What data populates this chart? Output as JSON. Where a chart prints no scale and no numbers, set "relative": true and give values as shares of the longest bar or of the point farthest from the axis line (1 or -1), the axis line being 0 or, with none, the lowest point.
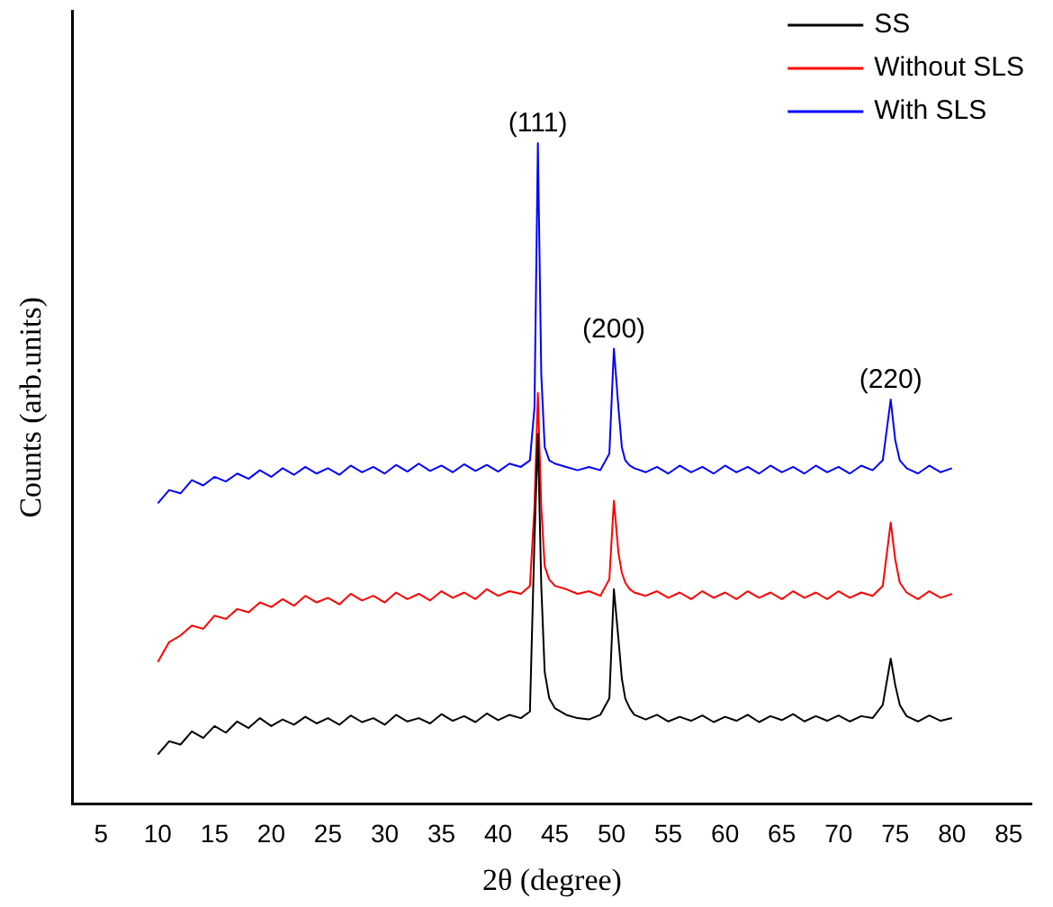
{
  "chart_data": {
    "type": "line",
    "xlabel": "2θ (degree)",
    "ylabel": "Counts (arb.units)",
    "relative": true,
    "xlim": [
      2.5,
      87
    ],
    "xticks": [
      5,
      10,
      15,
      20,
      25,
      30,
      35,
      40,
      45,
      50,
      55,
      60,
      65,
      70,
      75,
      80,
      85
    ],
    "legend": "top right",
    "marker": "none",
    "grid": false,
    "x": [
      10,
      11,
      12,
      13,
      14,
      15,
      16,
      17,
      18,
      19,
      20,
      21,
      22,
      23,
      24,
      25,
      26,
      27,
      28,
      29,
      30,
      31,
      32,
      33,
      34,
      35,
      36,
      37,
      38,
      39,
      40,
      41,
      42,
      42.8,
      43.2,
      43.5,
      43.8,
      44.1,
      44.5,
      45,
      46,
      47,
      48,
      49,
      49.8,
      50.2,
      50.6,
      50.9,
      51.2,
      51.6,
      52,
      53,
      54,
      55,
      56,
      57,
      58,
      59,
      60,
      61,
      62,
      63,
      64,
      65,
      66,
      67,
      68,
      69,
      70,
      71,
      72,
      73,
      73.9,
      74.6,
      75,
      75.4,
      76,
      77,
      78,
      79,
      80
    ],
    "series": [
      {
        "name": "SS",
        "color": "#000000",
        "values": [
          0.075,
          0.095,
          0.09,
          0.11,
          0.1,
          0.118,
          0.108,
          0.125,
          0.115,
          0.13,
          0.118,
          0.128,
          0.12,
          0.132,
          0.122,
          0.13,
          0.12,
          0.134,
          0.124,
          0.13,
          0.12,
          0.135,
          0.125,
          0.13,
          0.122,
          0.136,
          0.126,
          0.133,
          0.124,
          0.137,
          0.127,
          0.135,
          0.13,
          0.14,
          0.4,
          0.56,
          0.33,
          0.2,
          0.16,
          0.145,
          0.135,
          0.13,
          0.128,
          0.135,
          0.16,
          0.325,
          0.25,
          0.19,
          0.16,
          0.145,
          0.135,
          0.128,
          0.135,
          0.125,
          0.132,
          0.126,
          0.134,
          0.124,
          0.132,
          0.126,
          0.135,
          0.124,
          0.133,
          0.127,
          0.136,
          0.125,
          0.133,
          0.126,
          0.134,
          0.125,
          0.133,
          0.13,
          0.15,
          0.22,
          0.18,
          0.15,
          0.133,
          0.125,
          0.134,
          0.126,
          0.13
        ]
      },
      {
        "name": "Without SLS",
        "color": "#ff0000",
        "values": [
          0.215,
          0.245,
          0.255,
          0.27,
          0.265,
          0.285,
          0.28,
          0.295,
          0.29,
          0.305,
          0.298,
          0.31,
          0.3,
          0.315,
          0.305,
          0.312,
          0.302,
          0.318,
          0.308,
          0.315,
          0.305,
          0.32,
          0.31,
          0.318,
          0.308,
          0.322,
          0.312,
          0.32,
          0.31,
          0.325,
          0.315,
          0.322,
          0.318,
          0.33,
          0.45,
          0.622,
          0.45,
          0.36,
          0.34,
          0.33,
          0.325,
          0.318,
          0.322,
          0.315,
          0.34,
          0.459,
          0.38,
          0.35,
          0.335,
          0.325,
          0.32,
          0.315,
          0.322,
          0.312,
          0.32,
          0.31,
          0.322,
          0.312,
          0.32,
          0.31,
          0.322,
          0.312,
          0.32,
          0.31,
          0.322,
          0.312,
          0.32,
          0.31,
          0.322,
          0.312,
          0.32,
          0.315,
          0.33,
          0.426,
          0.37,
          0.335,
          0.32,
          0.31,
          0.322,
          0.312,
          0.318
        ]
      },
      {
        "name": "With SLS",
        "color": "#0000ff",
        "values": [
          0.455,
          0.475,
          0.47,
          0.49,
          0.482,
          0.495,
          0.488,
          0.5,
          0.492,
          0.505,
          0.495,
          0.508,
          0.498,
          0.51,
          0.5,
          0.508,
          0.498,
          0.512,
          0.502,
          0.51,
          0.5,
          0.513,
          0.503,
          0.515,
          0.504,
          0.512,
          0.502,
          0.514,
          0.504,
          0.513,
          0.503,
          0.515,
          0.51,
          0.52,
          0.6,
          1.0,
          0.65,
          0.54,
          0.52,
          0.515,
          0.51,
          0.505,
          0.51,
          0.505,
          0.53,
          0.689,
          0.6,
          0.54,
          0.52,
          0.512,
          0.508,
          0.502,
          0.51,
          0.5,
          0.512,
          0.502,
          0.51,
          0.5,
          0.512,
          0.502,
          0.51,
          0.5,
          0.512,
          0.502,
          0.51,
          0.5,
          0.512,
          0.502,
          0.51,
          0.5,
          0.512,
          0.505,
          0.52,
          0.612,
          0.55,
          0.52,
          0.508,
          0.5,
          0.512,
          0.502,
          0.508
        ]
      }
    ],
    "annotations": [
      {
        "text": "(111)",
        "x": 43.5,
        "y": 1.0
      },
      {
        "text": "(200)",
        "x": 50.2,
        "y": 0.689
      },
      {
        "text": "(220)",
        "x": 74.6,
        "y": 0.612
      }
    ]
  }
}
